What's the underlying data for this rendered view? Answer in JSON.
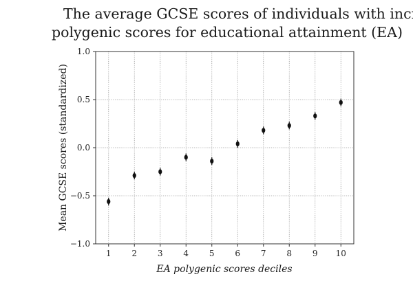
{
  "chart_data": {
    "type": "scatter",
    "title": [
      "The average GCSE scores of individuals with increasing",
      "polygenic scores for educational attainment (EA)"
    ],
    "xlabel": "EA polygenic scores deciles",
    "ylabel": "Mean GCSE scores (standardized)",
    "x": [
      1,
      2,
      3,
      4,
      5,
      6,
      7,
      8,
      9,
      10
    ],
    "x_tick_labels": [
      "1",
      "2",
      "3",
      "4",
      "5",
      "6",
      "7",
      "8",
      "9",
      "10"
    ],
    "y_tick_values": [
      -1.0,
      -0.5,
      0.0,
      0.5,
      1.0
    ],
    "y_tick_labels": [
      "−1.0",
      "−0.5",
      "0.0",
      "0.5",
      "1.0"
    ],
    "series": [
      {
        "values": [
          -0.56,
          -0.29,
          -0.25,
          -0.1,
          -0.14,
          0.04,
          0.18,
          0.23,
          0.33,
          0.47
        ],
        "error_low": [
          -0.6,
          -0.33,
          -0.29,
          -0.14,
          -0.18,
          0.0,
          0.14,
          0.19,
          0.29,
          0.43
        ],
        "error_high": [
          -0.52,
          -0.25,
          -0.21,
          -0.06,
          -0.1,
          0.08,
          0.22,
          0.27,
          0.37,
          0.51
        ]
      }
    ],
    "xlim": [
      0.5,
      10.5
    ],
    "ylim": [
      -1.0,
      1.0
    ],
    "grid": true
  }
}
